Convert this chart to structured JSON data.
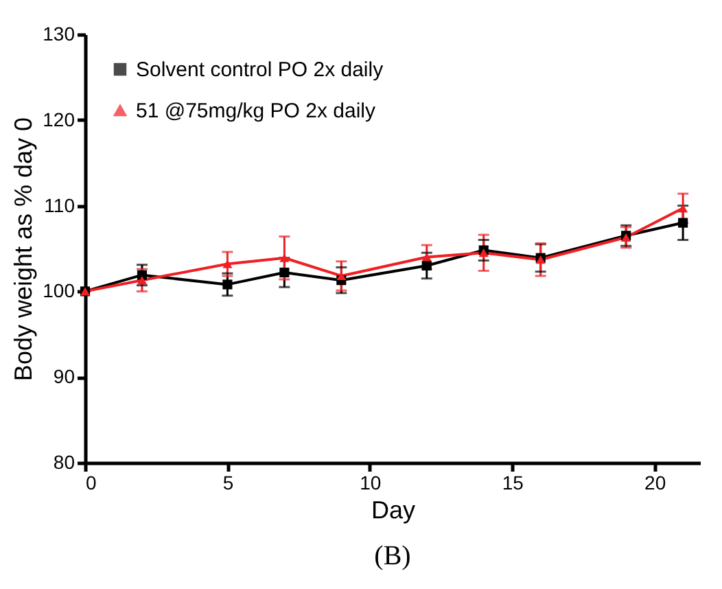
{
  "chart_data": {
    "type": "line",
    "xlabel": "Day",
    "ylabel": "Body weight as % day 0",
    "annotations": [
      "(B)"
    ],
    "x": [
      0,
      2,
      5,
      7,
      9,
      12,
      14,
      16,
      19,
      21
    ],
    "series": [
      {
        "name": "Solvent control PO 2x daily",
        "color": "#000000",
        "marker": "square",
        "values": [
          100,
          101.9,
          100.8,
          102.2,
          101.3,
          103,
          104.8,
          103.9,
          106.5,
          108
        ],
        "errors": [
          0,
          1.2,
          1.3,
          1.7,
          1.5,
          1.5,
          1.2,
          1.6,
          1.2,
          2
        ]
      },
      {
        "name": "51 @75mg/kg PO 2x daily",
        "color": "#ee2024",
        "marker": "triangle",
        "values": [
          100,
          101.3,
          103.2,
          103.9,
          101.8,
          104,
          104.5,
          103.7,
          106.3,
          109.7
        ],
        "errors": [
          0,
          1.3,
          1.4,
          2.5,
          1.7,
          1.4,
          2.1,
          1.9,
          1.2,
          1.7
        ]
      }
    ],
    "xlim": [
      0,
      21.6
    ],
    "xticks": [
      0,
      5,
      10,
      15,
      20
    ],
    "ylim": [
      80,
      130
    ],
    "yticks": [
      80,
      90,
      100,
      110,
      120,
      130
    ],
    "grid": false,
    "legend": "top left"
  }
}
